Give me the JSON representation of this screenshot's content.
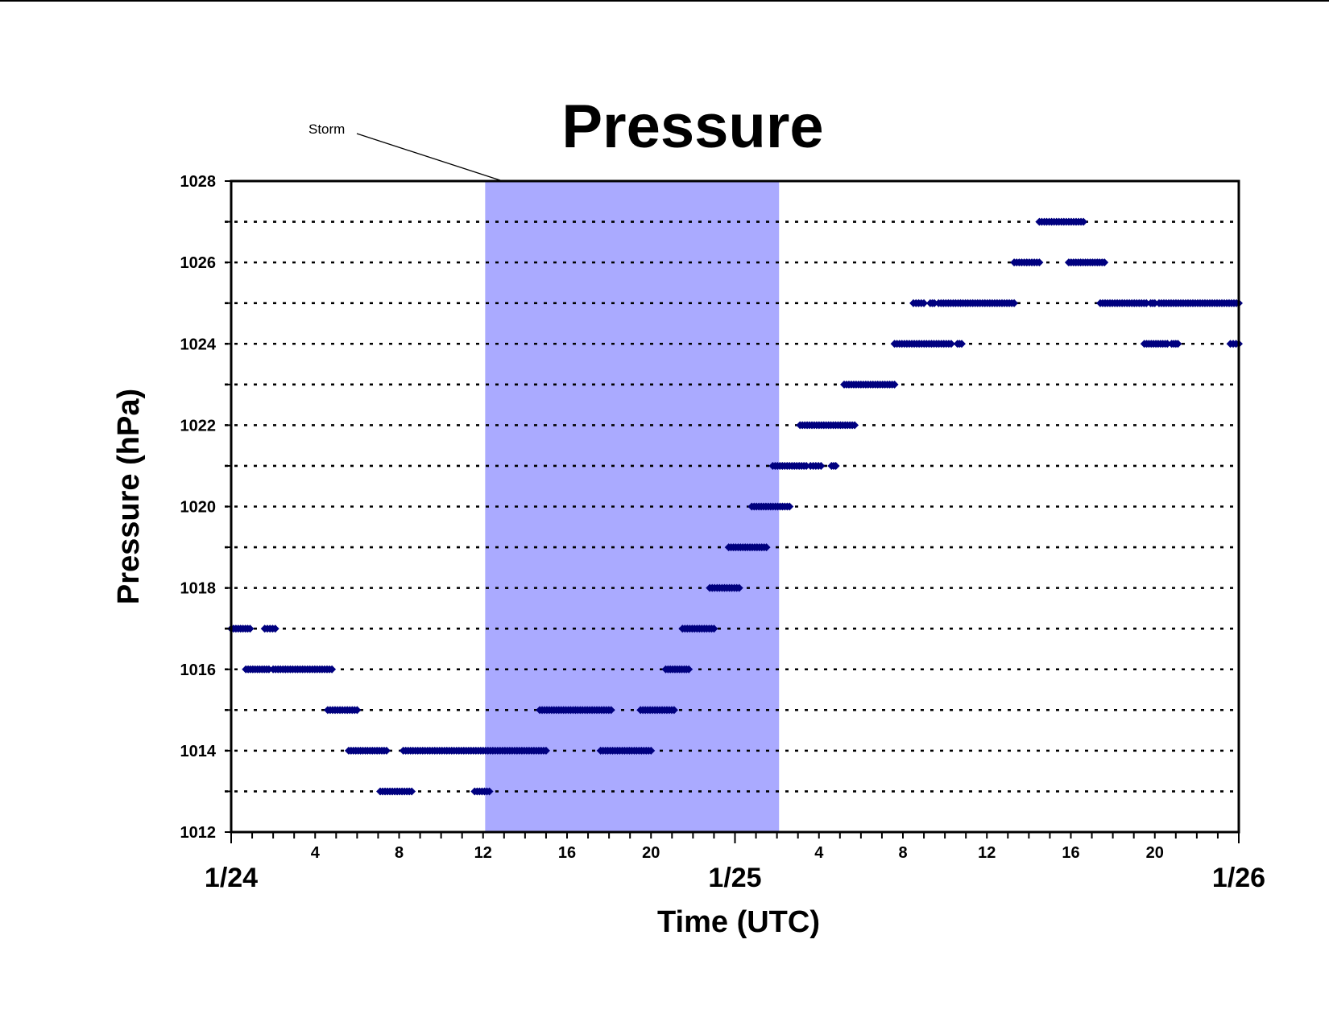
{
  "chart_data": {
    "type": "scatter",
    "title": "Pressure",
    "xlabel": "Time (UTC)",
    "ylabel": "Pressure (hPa)",
    "xlim_hours": [
      0,
      48
    ],
    "ylim": [
      1012,
      1028
    ],
    "yticks": [
      "1012",
      "1014",
      "1016",
      "1018",
      "1020",
      "1022",
      "1024",
      "1026",
      "1028"
    ],
    "grid": "dotted horizontal lines at every 1 hPa",
    "xticks": [
      {
        "h": 4,
        "label": "4"
      },
      {
        "h": 8,
        "label": "8"
      },
      {
        "h": 12,
        "label": "12"
      },
      {
        "h": 16,
        "label": "16"
      },
      {
        "h": 20,
        "label": "20"
      },
      {
        "h": 28,
        "label": "4"
      },
      {
        "h": 32,
        "label": "8"
      },
      {
        "h": 36,
        "label": "12"
      },
      {
        "h": 40,
        "label": "16"
      },
      {
        "h": 44,
        "label": "20"
      }
    ],
    "day_labels": [
      {
        "h": 0,
        "label": "1/24"
      },
      {
        "h": 24,
        "label": "1/25"
      },
      {
        "h": 48,
        "label": "1/26"
      }
    ],
    "annotation": {
      "text": "Storm",
      "span_hours": [
        12.1,
        26.1
      ],
      "color": "#aaaaff"
    },
    "marker_color": "#00007f",
    "series": [
      {
        "segments": [
          {
            "p": 1017,
            "from": 0.0,
            "to": 0.9
          },
          {
            "p": 1017,
            "from": 1.6,
            "to": 2.1
          },
          {
            "p": 1016,
            "from": 0.7,
            "to": 1.8
          },
          {
            "p": 1016,
            "from": 2.0,
            "to": 4.8
          },
          {
            "p": 1015,
            "from": 4.6,
            "to": 6.0
          },
          {
            "p": 1014,
            "from": 5.6,
            "to": 7.4
          },
          {
            "p": 1014,
            "from": 8.2,
            "to": 15.0
          },
          {
            "p": 1013,
            "from": 7.1,
            "to": 8.6
          },
          {
            "p": 1013,
            "from": 11.6,
            "to": 12.3
          },
          {
            "p": 1015,
            "from": 14.7,
            "to": 18.1
          },
          {
            "p": 1015,
            "from": 19.5,
            "to": 21.1
          },
          {
            "p": 1014,
            "from": 17.6,
            "to": 20.0
          },
          {
            "p": 1016,
            "from": 20.7,
            "to": 21.8
          },
          {
            "p": 1017,
            "from": 21.5,
            "to": 23.0
          },
          {
            "p": 1018,
            "from": 22.8,
            "to": 24.2
          },
          {
            "p": 1019,
            "from": 23.7,
            "to": 25.5
          },
          {
            "p": 1020,
            "from": 24.8,
            "to": 26.6
          },
          {
            "p": 1021,
            "from": 25.8,
            "to": 27.4
          },
          {
            "p": 1021,
            "from": 27.6,
            "to": 28.1
          },
          {
            "p": 1021,
            "from": 28.6,
            "to": 28.8
          },
          {
            "p": 1022,
            "from": 27.1,
            "to": 29.7
          },
          {
            "p": 1023,
            "from": 29.2,
            "to": 31.6
          },
          {
            "p": 1024,
            "from": 31.6,
            "to": 34.3
          },
          {
            "p": 1024,
            "from": 34.6,
            "to": 34.8
          },
          {
            "p": 1025,
            "from": 32.5,
            "to": 33.0
          },
          {
            "p": 1025,
            "from": 33.3,
            "to": 33.5
          },
          {
            "p": 1025,
            "from": 33.7,
            "to": 37.3
          },
          {
            "p": 1026,
            "from": 37.3,
            "to": 38.5
          },
          {
            "p": 1026,
            "from": 39.9,
            "to": 41.6
          },
          {
            "p": 1027,
            "from": 38.5,
            "to": 40.6
          },
          {
            "p": 1025,
            "from": 41.4,
            "to": 43.6
          },
          {
            "p": 1025,
            "from": 43.8,
            "to": 44.0
          },
          {
            "p": 1025,
            "from": 44.2,
            "to": 48.0
          },
          {
            "p": 1024,
            "from": 43.5,
            "to": 44.6
          },
          {
            "p": 1024,
            "from": 44.8,
            "to": 45.1
          },
          {
            "p": 1024,
            "from": 47.6,
            "to": 48.0
          }
        ]
      }
    ]
  }
}
